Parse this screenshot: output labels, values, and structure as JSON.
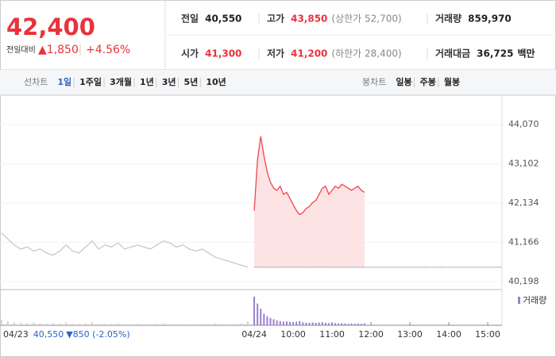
{
  "header": {
    "price": "42,400",
    "change_label": "전일대비",
    "change": "▲1,850",
    "change_pct": "+4.56%",
    "stats": [
      {
        "label": "전일",
        "value": "40,550"
      },
      {
        "label": "고가",
        "value": "43,850",
        "extra": "(상한가 52,700)"
      },
      {
        "label": "거래량",
        "value": "859,970"
      },
      {
        "label": "시가",
        "value": "41,300"
      },
      {
        "label": "저가",
        "value": "41,200",
        "extra": "(하한가 28,400)"
      },
      {
        "label": "거래대금",
        "value": "36,725",
        "extra": "백만"
      }
    ]
  },
  "tabs": {
    "line_label": "선차트",
    "line": [
      "1일",
      "1주일",
      "3개월",
      "1년",
      "3년",
      "5년",
      "10년"
    ],
    "candle_label": "봉차트",
    "candle": [
      "일봉",
      "주봉",
      "월봉"
    ]
  },
  "chart_data": {
    "type": "line",
    "ylim": [
      40000,
      44640
    ],
    "yticks": [
      {
        "value": 44070,
        "label": "44,070"
      },
      {
        "value": 43102,
        "label": "43,102"
      },
      {
        "value": 42134,
        "label": "42,134"
      },
      {
        "value": 41166,
        "label": "41,166"
      },
      {
        "value": 40198,
        "label": "40,198"
      }
    ],
    "xlim": [
      -392,
      382
    ],
    "xticks": [
      {
        "value": 0,
        "label": "04/24"
      },
      {
        "value": 60,
        "label": "10:00"
      },
      {
        "value": 120,
        "label": "11:00"
      },
      {
        "value": 180,
        "label": "12:00"
      },
      {
        "value": 240,
        "label": "13:00"
      },
      {
        "value": 300,
        "label": "14:00"
      },
      {
        "value": 360,
        "label": "15:00"
      }
    ],
    "reference": 40550,
    "volume_label": "거래량",
    "vlim": [
      0,
      100000
    ],
    "series": [
      {
        "color": "#c8c8c8",
        "volume_color": "#d0d0d0",
        "x": [
          -390,
          -380,
          -370,
          -360,
          -350,
          -340,
          -330,
          -320,
          -310,
          -300,
          -290,
          -280,
          -270,
          -260,
          -250,
          -240,
          -230,
          -220,
          -210,
          -200,
          -190,
          -180,
          -170,
          -160,
          -150,
          -140,
          -130,
          -120,
          -110,
          -100,
          -90,
          -80,
          -70,
          -60,
          -50,
          -40,
          -30,
          -20,
          -10
        ],
        "values": [
          41400,
          41250,
          41100,
          41000,
          41050,
          40950,
          41000,
          40900,
          40850,
          40950,
          41100,
          40950,
          40900,
          41050,
          41200,
          41000,
          41100,
          41050,
          41150,
          41000,
          41050,
          41100,
          41050,
          41000,
          41100,
          41200,
          41150,
          41050,
          41100,
          41000,
          40950,
          41000,
          40900,
          40800,
          40750,
          40700,
          40650,
          40600,
          40550
        ],
        "volume": [
          18000,
          12000,
          9000,
          8000,
          7000,
          9000,
          6000,
          5000,
          7000,
          6000,
          9000,
          5000,
          4000,
          6000,
          10000,
          5000,
          4000,
          5000,
          6000,
          4000,
          3000,
          5000,
          4000,
          3000,
          5000,
          7000,
          4000,
          3000,
          4000,
          3000,
          4000,
          5000,
          4000,
          6000,
          5000,
          4000,
          5000,
          6000,
          12000
        ]
      },
      {
        "color": "#f0454c",
        "fill": "#fde3e4",
        "volume_color": "#9b7fd4",
        "x": [
          0,
          5,
          10,
          15,
          20,
          25,
          30,
          35,
          40,
          45,
          50,
          55,
          60,
          65,
          70,
          75,
          80,
          85,
          90,
          95,
          100,
          105,
          110,
          115,
          120,
          125,
          130,
          135,
          140,
          145,
          150,
          155,
          160,
          165,
          170
        ],
        "values": [
          41950,
          43200,
          43780,
          43300,
          42900,
          42650,
          42500,
          42450,
          42550,
          42350,
          42400,
          42250,
          42100,
          41950,
          41850,
          41900,
          42000,
          42050,
          42150,
          42200,
          42350,
          42500,
          42550,
          42350,
          42450,
          42550,
          42500,
          42600,
          42550,
          42500,
          42450,
          42500,
          42550,
          42450,
          42400
        ],
        "volume": [
          95000,
          72000,
          55000,
          38000,
          30000,
          24000,
          20000,
          16000,
          14000,
          12000,
          13000,
          11000,
          10000,
          12000,
          14000,
          10000,
          9000,
          8000,
          9000,
          8000,
          9000,
          10000,
          8000,
          7000,
          8000,
          7000,
          6000,
          7000,
          6000,
          5000,
          6000,
          5000,
          6000,
          5000,
          6000
        ]
      }
    ],
    "footer": {
      "date": "04/23",
      "close": "40,550",
      "change": "▼850 (-2.05%)"
    }
  }
}
